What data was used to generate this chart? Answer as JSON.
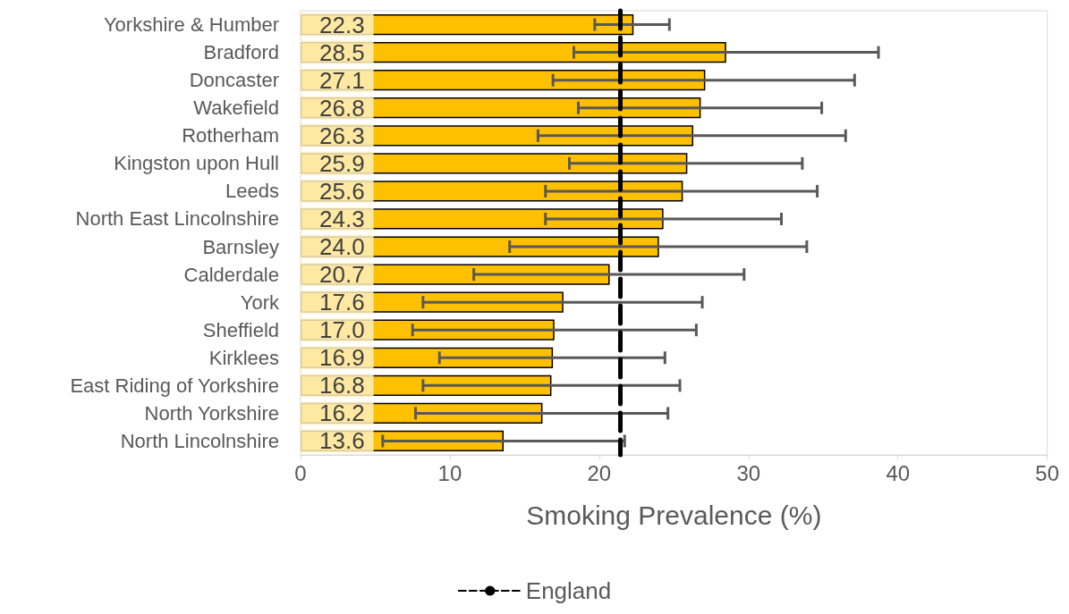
{
  "chart_data": {
    "type": "bar",
    "orientation": "horizontal",
    "xlabel": "Smoking Prevalence (%)",
    "categories": [
      "Yorkshire & Humber",
      "Bradford",
      "Doncaster",
      "Wakefield",
      "Rotherham",
      "Kingston upon Hull",
      "Leeds",
      "North East Lincolnshire",
      "Barnsley",
      "Calderdale",
      "York",
      "Sheffield",
      "Kirklees",
      "East Riding of Yorkshire",
      "North Yorkshire",
      "North Lincolnshire"
    ],
    "values": [
      22.3,
      28.5,
      27.1,
      26.8,
      26.3,
      25.9,
      25.6,
      24.3,
      24.0,
      20.7,
      17.6,
      17.0,
      16.9,
      16.8,
      16.2,
      13.6
    ],
    "errors": [
      [
        19.7,
        24.7
      ],
      [
        18.3,
        38.7
      ],
      [
        16.9,
        37.1
      ],
      [
        18.6,
        34.9
      ],
      [
        15.9,
        36.5
      ],
      [
        18.0,
        33.6
      ],
      [
        16.4,
        34.6
      ],
      [
        16.4,
        32.2
      ],
      [
        14.0,
        33.9
      ],
      [
        11.6,
        29.7
      ],
      [
        8.2,
        26.9
      ],
      [
        7.5,
        26.5
      ],
      [
        9.3,
        24.4
      ],
      [
        8.2,
        25.4
      ],
      [
        7.7,
        24.6
      ],
      [
        5.5,
        21.7
      ]
    ],
    "value_labels": [
      "22.3",
      "28.5",
      "27.1",
      "26.8",
      "26.3",
      "25.9",
      "25.6",
      "24.3",
      "24.0",
      "20.7",
      "17.6",
      "17.0",
      "16.9",
      "16.8",
      "16.2",
      "13.6"
    ],
    "color": "#ffc000",
    "xlim": [
      0,
      50
    ],
    "xticks": [
      0,
      10,
      20,
      30,
      40,
      50
    ],
    "ref_lines": [
      {
        "axis": "x",
        "value": 21.4,
        "label": "England",
        "color": "#000000",
        "line_style": "dashed"
      }
    ],
    "legend": "bottom"
  }
}
